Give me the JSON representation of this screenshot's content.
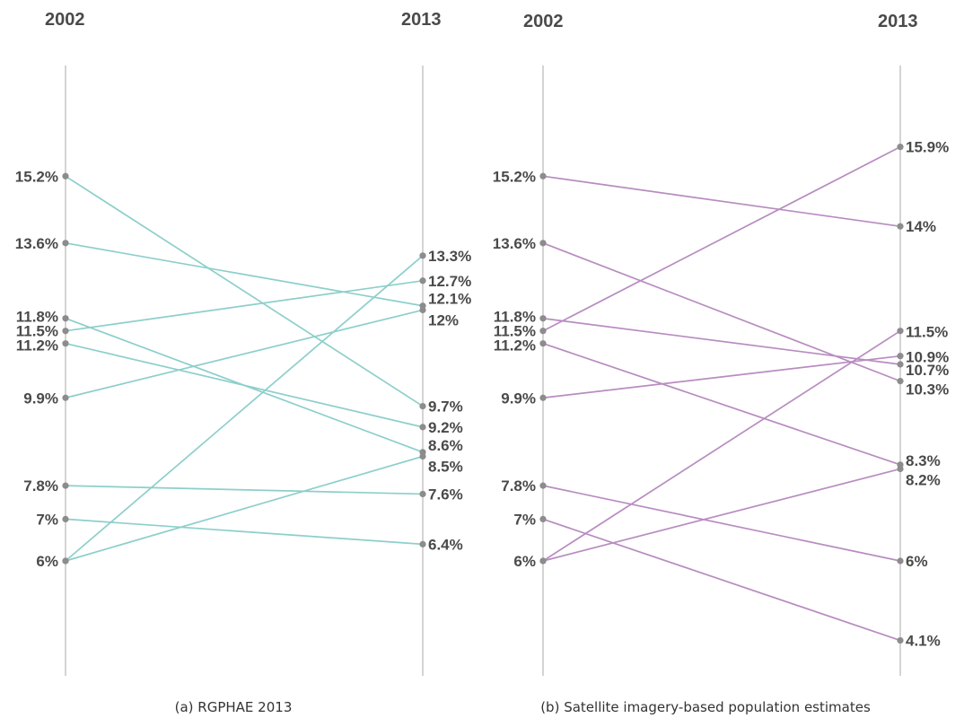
{
  "chart_data": [
    {
      "type": "line",
      "subtype": "slope",
      "caption": "(a) RGPHAE 2013",
      "x": [
        "2002",
        "2013"
      ],
      "color": "#8ccfcb",
      "series": [
        {
          "values": [
            15.2,
            9.7
          ]
        },
        {
          "values": [
            13.6,
            12.1
          ]
        },
        {
          "values": [
            11.8,
            8.6
          ]
        },
        {
          "values": [
            11.5,
            12.7
          ]
        },
        {
          "values": [
            11.2,
            9.2
          ]
        },
        {
          "values": [
            9.9,
            12.0
          ]
        },
        {
          "values": [
            7.8,
            7.6
          ]
        },
        {
          "values": [
            7.0,
            6.4
          ]
        },
        {
          "values": [
            6.0,
            13.3
          ]
        },
        {
          "values": [
            6.0,
            8.5
          ]
        }
      ],
      "left_labels": [
        "15.2%",
        "13.6%",
        "11.8%",
        "11.5%",
        "11.2%",
        "9.9%",
        "7.8%",
        "7%",
        "6%"
      ],
      "left_label_values": [
        15.2,
        13.6,
        11.8,
        11.5,
        11.2,
        9.9,
        7.8,
        7.0,
        6.0
      ],
      "right_labels": [
        "13.3%",
        "12.7%",
        "12.1%",
        "12%",
        "9.7%",
        "9.2%",
        "8.6%",
        "8.5%",
        "7.6%",
        "6.4%"
      ],
      "right_label_values": [
        13.3,
        12.7,
        12.1,
        12.0,
        9.7,
        9.2,
        8.6,
        8.5,
        7.6,
        6.4
      ],
      "grid": false
    },
    {
      "type": "line",
      "subtype": "slope",
      "caption": "(b) Satellite imagery-based population estimates",
      "x": [
        "2002",
        "2013"
      ],
      "color": "#b88cc0",
      "series": [
        {
          "values": [
            15.2,
            14.0
          ]
        },
        {
          "values": [
            13.6,
            10.3
          ]
        },
        {
          "values": [
            11.8,
            10.7
          ]
        },
        {
          "values": [
            11.5,
            15.9
          ]
        },
        {
          "values": [
            11.2,
            8.3
          ]
        },
        {
          "values": [
            9.9,
            10.9
          ]
        },
        {
          "values": [
            7.8,
            6.0
          ]
        },
        {
          "values": [
            7.0,
            4.1
          ]
        },
        {
          "values": [
            6.0,
            11.5
          ]
        },
        {
          "values": [
            6.0,
            8.2
          ]
        }
      ],
      "left_labels": [
        "15.2%",
        "13.6%",
        "11.8%",
        "11.5%",
        "11.2%",
        "9.9%",
        "7.8%",
        "7%",
        "6%"
      ],
      "left_label_values": [
        15.2,
        13.6,
        11.8,
        11.5,
        11.2,
        9.9,
        7.8,
        7.0,
        6.0
      ],
      "right_labels": [
        "15.9%",
        "14%",
        "11.5%",
        "10.9%",
        "10.7%",
        "10.3%",
        "8.3%",
        "8.2%",
        "6%",
        "4.1%"
      ],
      "right_label_values": [
        15.9,
        14.0,
        11.5,
        10.9,
        10.7,
        10.3,
        8.3,
        8.2,
        6.0,
        4.1
      ],
      "grid": false
    }
  ]
}
